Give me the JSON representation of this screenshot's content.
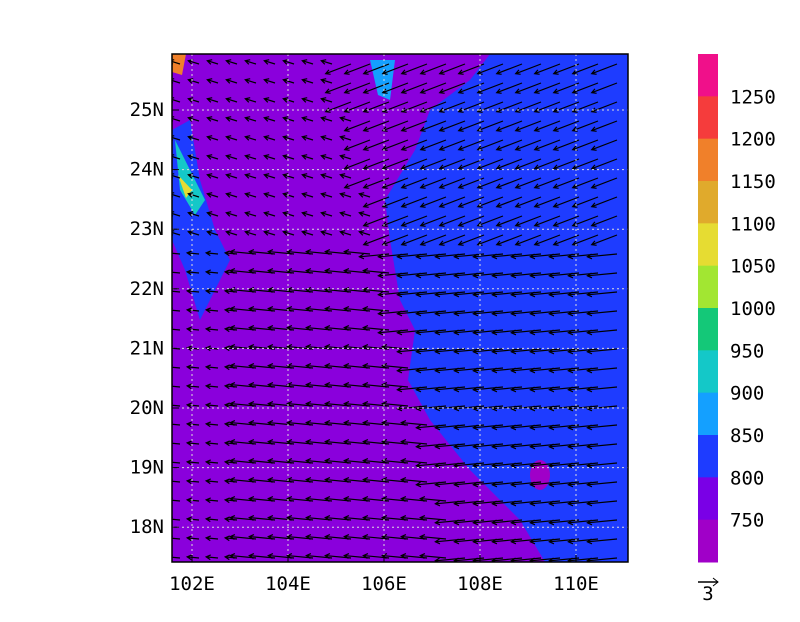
{
  "map": {
    "x_ticks": [
      "102E",
      "104E",
      "106E",
      "108E",
      "110E"
    ],
    "y_ticks": [
      "25N",
      "24N",
      "23N",
      "22N",
      "21N",
      "20N",
      "19N",
      "18N"
    ],
    "colorbar": {
      "labels": [
        1250,
        1200,
        1150,
        1100,
        1050,
        1000,
        950,
        900,
        850,
        800,
        750
      ],
      "colors": [
        "#f0108a",
        "#f53c3c",
        "#f0802a",
        "#e0aa2c",
        "#e6dc32",
        "#a2e632",
        "#14c878",
        "#14c8c8",
        "#14a0ff",
        "#1e3cff",
        "#7a00e6",
        "#a000c8"
      ]
    },
    "reference_vector": "3"
  }
}
